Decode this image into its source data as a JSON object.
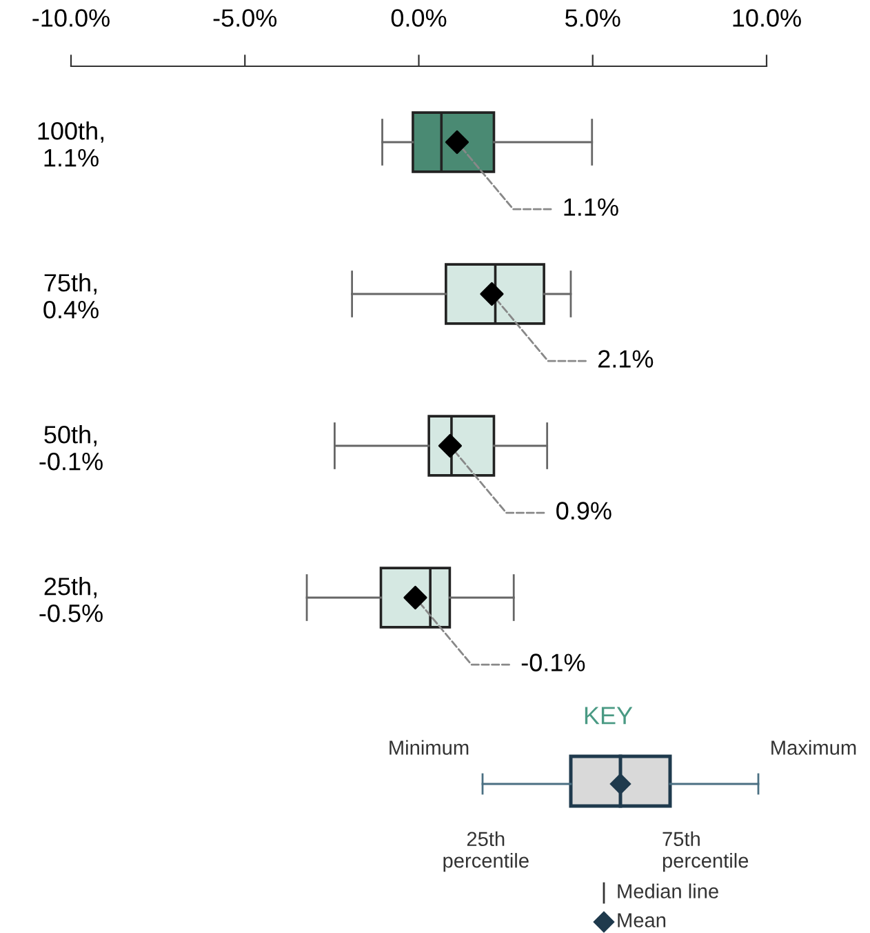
{
  "chart_data": {
    "type": "box",
    "orientation": "horizontal",
    "categories": [
      "100th,\n1.1%",
      "75th,\n0.4%",
      "50th,\n-0.1%",
      "25th,\n-0.5%"
    ],
    "boxes": [
      {
        "low": -1.05,
        "q1": -0.17,
        "median": 0.65,
        "q3": 2.16,
        "high": 4.98
      },
      {
        "low": -1.92,
        "q1": 0.78,
        "median": 2.2,
        "q3": 3.6,
        "high": 4.37
      },
      {
        "low": -2.42,
        "q1": 0.29,
        "median": 0.94,
        "q3": 2.16,
        "high": 3.69
      },
      {
        "low": -3.22,
        "q1": -1.09,
        "median": 0.33,
        "q3": 0.89,
        "high": 2.73
      }
    ],
    "colors": [
      "#4a8a73",
      "#d5e8e2",
      "#d5e8e2",
      "#d5e8e2"
    ],
    "series": [
      {
        "type": "scatter",
        "x": [
          "100th,\n1.1%",
          "75th,\n0.4%",
          "50th,\n-0.1%",
          "25th,\n-0.5%"
        ],
        "values": [
          1.1,
          2.1,
          0.9,
          -0.1
        ],
        "color": "#000000",
        "value_labels": [
          "1.1%",
          "2.1%",
          "0.9%",
          "-0.1%"
        ]
      }
    ],
    "xlim": [
      -10,
      10
    ],
    "xticks": [
      {
        "value": -10,
        "label": "-10.0%"
      },
      {
        "value": -5,
        "label": "-5.0%"
      },
      {
        "value": 0,
        "label": "0.0%"
      },
      {
        "value": 5,
        "label": "5.0%"
      },
      {
        "value": 10,
        "label": "10.0%"
      }
    ],
    "marker": "diamond",
    "grid": false,
    "annotations": [
      "KEY",
      "Minimum",
      "Maximum",
      "25th\npercentile",
      "75th\npercentile",
      "Median line",
      "Mean"
    ]
  }
}
